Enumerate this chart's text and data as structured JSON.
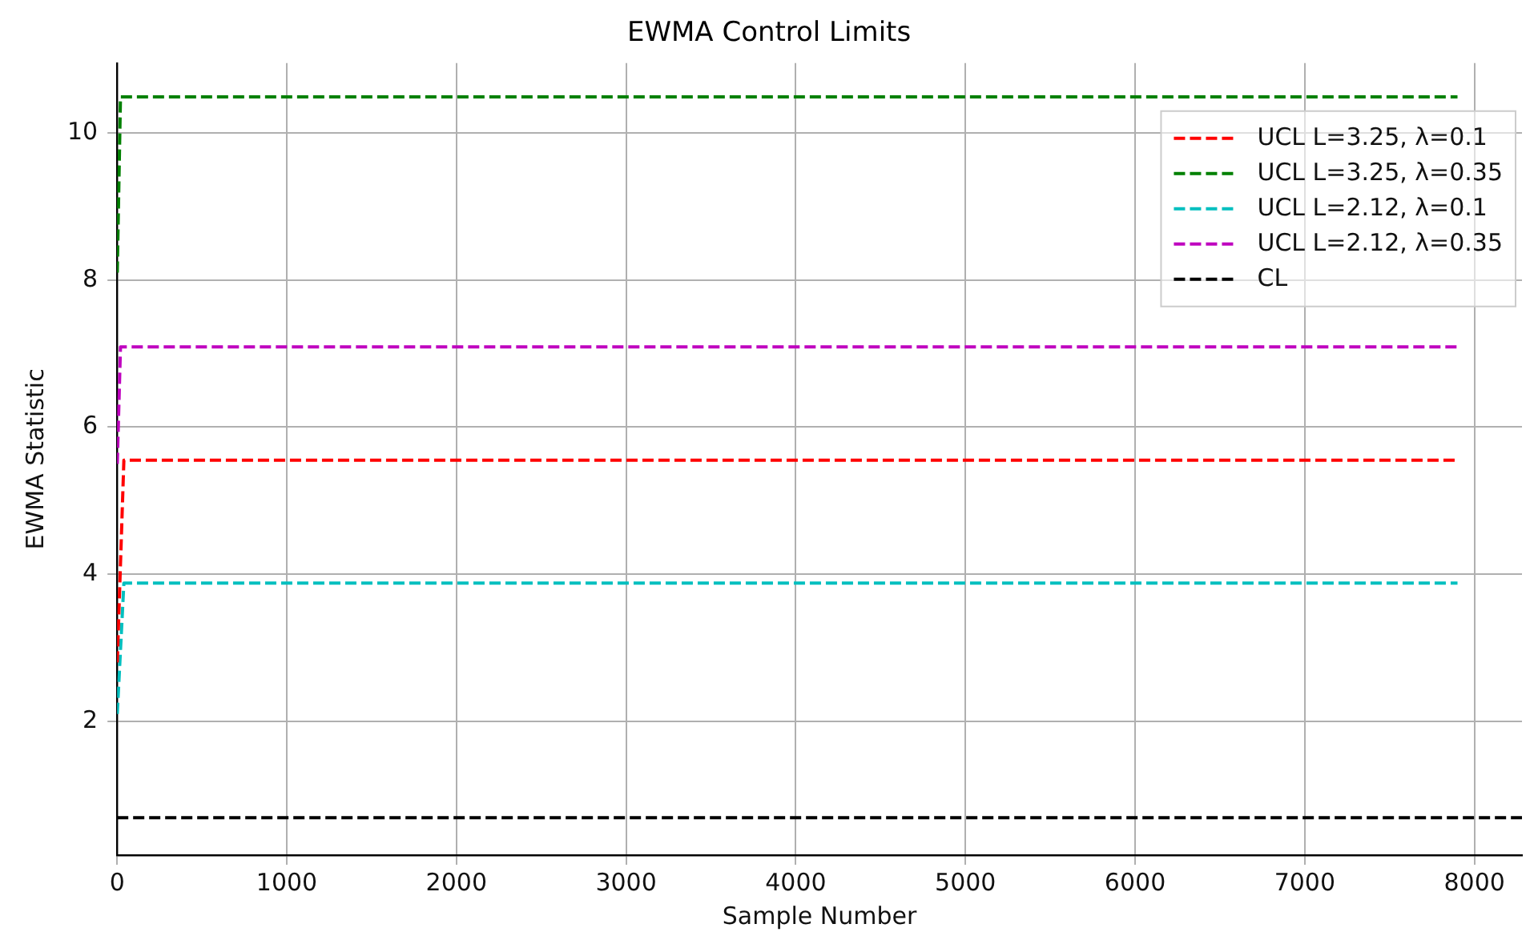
{
  "chart_data": {
    "type": "line",
    "title": "EWMA Control Limits",
    "xlabel": "Sample Number",
    "ylabel": "EWMA Statistic",
    "xlim": [
      0,
      8280
    ],
    "xticks": [
      0,
      1000,
      2000,
      3000,
      4000,
      5000,
      6000,
      7000,
      8000
    ],
    "ylim": [
      0.18,
      10.95
    ],
    "yticks": [
      2,
      4,
      6,
      8,
      10
    ],
    "grid": true,
    "legend": "top right",
    "marker": "none",
    "line_style": "dashed",
    "series": [
      {
        "name": "UCL L=3.25, λ=0.1",
        "color": "#ff0000",
        "x": [
          1,
          40,
          7900
        ],
        "values": [
          2.8,
          5.55,
          5.55
        ]
      },
      {
        "name": "UCL L=3.25, λ=0.35",
        "color": "#008000",
        "x": [
          1,
          20,
          7900
        ],
        "values": [
          8.1,
          10.49,
          10.49
        ]
      },
      {
        "name": "UCL L=2.12, λ=0.1",
        "color": "#00bfbf",
        "x": [
          1,
          40,
          7900
        ],
        "values": [
          2.1,
          3.88,
          3.88
        ]
      },
      {
        "name": "UCL L=2.12, λ=0.35",
        "color": "#bf00bf",
        "x": [
          1,
          20,
          7900
        ],
        "values": [
          5.5,
          7.09,
          7.09
        ]
      },
      {
        "name": "CL",
        "color": "#000000",
        "x": [
          0,
          8280
        ],
        "values": [
          0.69,
          0.69
        ]
      }
    ]
  }
}
